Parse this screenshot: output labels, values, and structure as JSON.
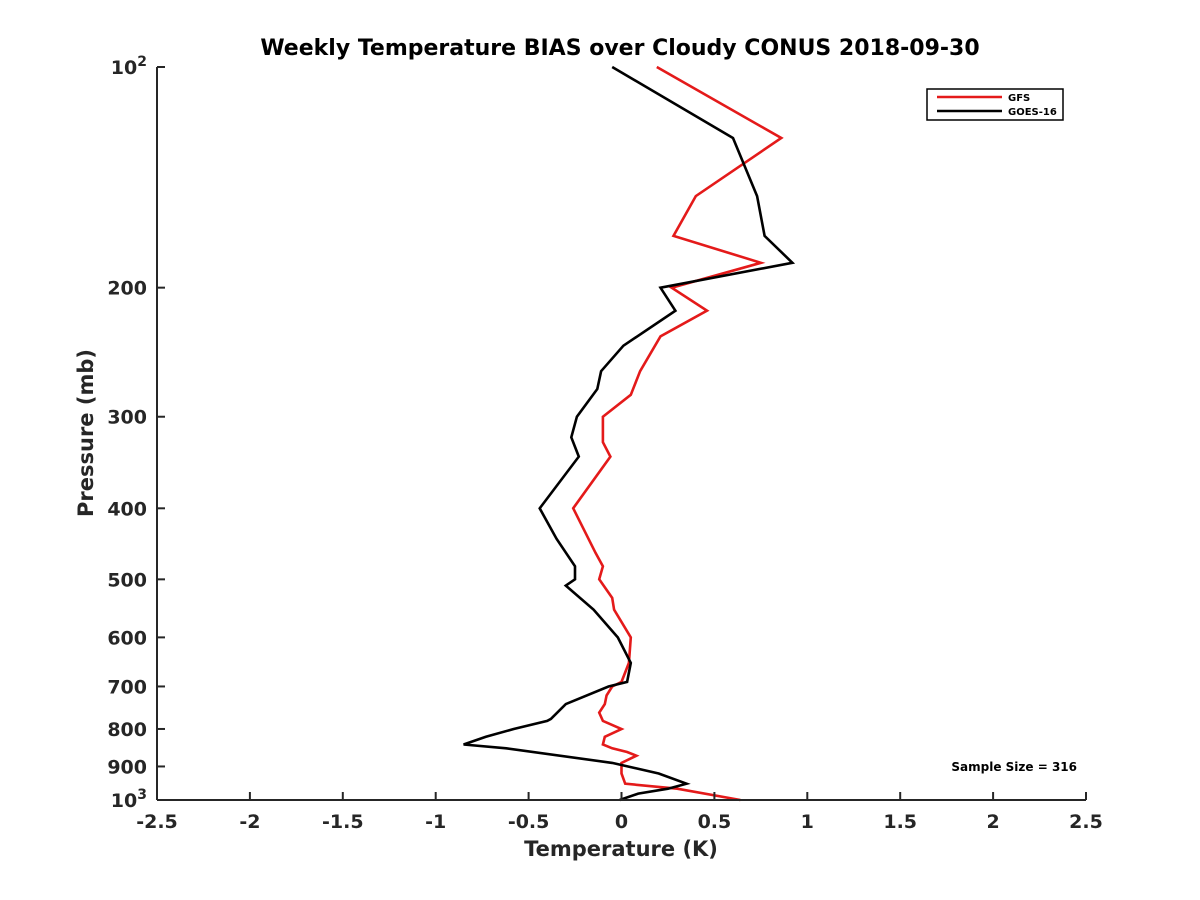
{
  "chart_data": {
    "type": "line",
    "title": "Weekly Temperature BIAS over Cloudy CONUS 2018-09-30",
    "xlabel": "Temperature (K)",
    "ylabel": "Pressure (mb)",
    "xlim": [
      -2.5,
      2.5
    ],
    "ylim": [
      100,
      1000
    ],
    "y_scale": "log",
    "y_reversed": true,
    "x_ticks": [
      -2.5,
      -2,
      -1.5,
      -1,
      -0.5,
      0,
      0.5,
      1,
      1.5,
      2,
      2.5
    ],
    "x_tick_labels": [
      "-2.5",
      "-2",
      "-1.5",
      "-1",
      "-0.5",
      "0",
      "0.5",
      "1",
      "1.5",
      "2",
      "2.5"
    ],
    "y_ticks": [
      100,
      200,
      300,
      400,
      500,
      600,
      700,
      800,
      900,
      1000
    ],
    "y_tick_labels": [
      {
        "base": "10",
        "exp": "2"
      },
      {
        "base": "200",
        "exp": ""
      },
      {
        "base": "300",
        "exp": ""
      },
      {
        "base": "400",
        "exp": ""
      },
      {
        "base": "500",
        "exp": ""
      },
      {
        "base": "600",
        "exp": ""
      },
      {
        "base": "700",
        "exp": ""
      },
      {
        "base": "800",
        "exp": ""
      },
      {
        "base": "900",
        "exp": ""
      },
      {
        "base": "10",
        "exp": "3"
      }
    ],
    "grid": false,
    "legend_position": "top-right",
    "annotation": "Sample Size = 316",
    "series": [
      {
        "name": "GFS",
        "color": "#e41a1a",
        "points": [
          [
            0.19,
            100
          ],
          [
            0.86,
            125
          ],
          [
            0.4,
            150
          ],
          [
            0.28,
            170
          ],
          [
            0.75,
            185
          ],
          [
            0.27,
            200
          ],
          [
            0.46,
            215
          ],
          [
            0.21,
            233
          ],
          [
            0.1,
            260
          ],
          [
            0.05,
            280
          ],
          [
            -0.1,
            300
          ],
          [
            -0.1,
            325
          ],
          [
            -0.06,
            340
          ],
          [
            -0.26,
            400
          ],
          [
            -0.14,
            460
          ],
          [
            -0.1,
            480
          ],
          [
            -0.12,
            500
          ],
          [
            -0.05,
            530
          ],
          [
            -0.04,
            550
          ],
          [
            0.05,
            600
          ],
          [
            0.04,
            650
          ],
          [
            0.0,
            690
          ],
          [
            -0.05,
            700
          ],
          [
            -0.08,
            720
          ],
          [
            -0.09,
            740
          ],
          [
            -0.12,
            760
          ],
          [
            -0.1,
            780
          ],
          [
            0.0,
            800
          ],
          [
            -0.09,
            820
          ],
          [
            -0.1,
            840
          ],
          [
            -0.05,
            850
          ],
          [
            0.03,
            860
          ],
          [
            0.08,
            870
          ],
          [
            0.0,
            890
          ],
          [
            0.0,
            920
          ],
          [
            0.02,
            950
          ],
          [
            0.3,
            965
          ],
          [
            0.64,
            1000
          ]
        ]
      },
      {
        "name": "GOES-16",
        "color": "#000000",
        "points": [
          [
            -0.05,
            100
          ],
          [
            0.6,
            125
          ],
          [
            0.73,
            150
          ],
          [
            0.77,
            170
          ],
          [
            0.92,
            185
          ],
          [
            0.21,
            200
          ],
          [
            0.29,
            215
          ],
          [
            0.01,
            240
          ],
          [
            -0.11,
            260
          ],
          [
            -0.13,
            275
          ],
          [
            -0.24,
            300
          ],
          [
            -0.27,
            320
          ],
          [
            -0.23,
            340
          ],
          [
            -0.44,
            400
          ],
          [
            -0.35,
            440
          ],
          [
            -0.25,
            480
          ],
          [
            -0.25,
            500
          ],
          [
            -0.3,
            510
          ],
          [
            -0.15,
            550
          ],
          [
            -0.02,
            600
          ],
          [
            0.05,
            650
          ],
          [
            0.03,
            690
          ],
          [
            -0.07,
            700
          ],
          [
            -0.3,
            740
          ],
          [
            -0.38,
            775
          ],
          [
            -0.4,
            780
          ],
          [
            -0.58,
            800
          ],
          [
            -0.73,
            820
          ],
          [
            -0.85,
            840
          ],
          [
            -0.62,
            850
          ],
          [
            -0.05,
            890
          ],
          [
            0.2,
            920
          ],
          [
            0.35,
            950
          ],
          [
            0.25,
            965
          ],
          [
            0.09,
            980
          ],
          [
            -0.01,
            1000
          ]
        ]
      }
    ]
  }
}
